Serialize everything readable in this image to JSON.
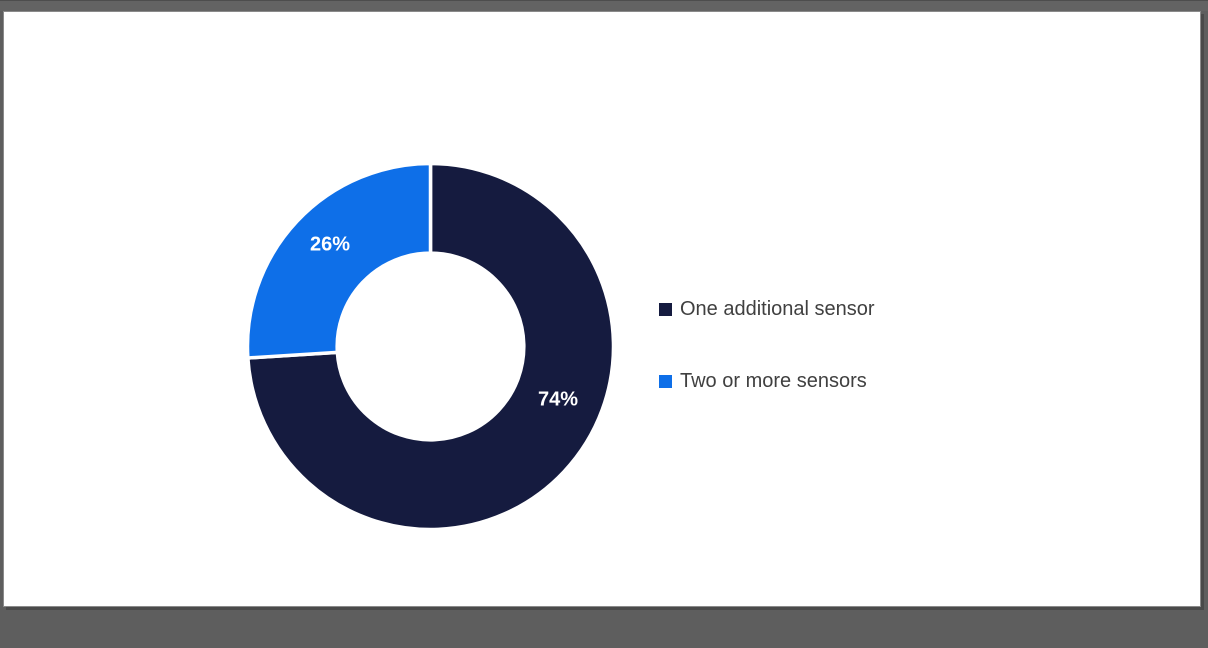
{
  "window": {
    "background_color": "#5e5e5e",
    "top_bar_color": "#636363",
    "slide_color": "#ffffff",
    "slide_border_color": "#8a8a8a",
    "slide_shadow_color": "#4a4a4a"
  },
  "chart_data": {
    "type": "pie",
    "subtype": "donut",
    "title": "",
    "start_angle_deg": 0,
    "direction": "clockwise",
    "donut_hole_ratio": 0.51,
    "separator_color": "#ffffff",
    "data_label_color": "#ffffff",
    "legend_position": "right",
    "legend_text_color": "#404040",
    "slices": [
      {
        "label": "One additional sensor",
        "value": 74,
        "display": "74%",
        "color": "#151b3f"
      },
      {
        "label": "Two or more sensors",
        "value": 26,
        "display": "26%",
        "color": "#0e6fe8"
      }
    ]
  }
}
